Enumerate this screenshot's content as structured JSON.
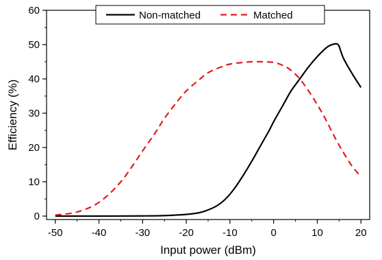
{
  "chart_data": {
    "type": "line",
    "title": "",
    "xlabel": "Input power (dBm)",
    "ylabel": "Efficiency (%)",
    "xlim": [
      -52,
      22
    ],
    "ylim": [
      -1,
      60
    ],
    "x_ticks": [
      -50,
      -40,
      -30,
      -20,
      -10,
      0,
      10,
      20
    ],
    "y_ticks": [
      0,
      10,
      20,
      30,
      40,
      50,
      60
    ],
    "grid": false,
    "legend_position": "top-center",
    "series": [
      {
        "name": "Non-matched",
        "color": "#000000",
        "dash": "solid",
        "x": [
          -50,
          -40,
          -30,
          -25,
          -20,
          -17,
          -15,
          -13,
          -11,
          -9,
          -7,
          -5,
          -3,
          -1,
          0,
          2,
          4,
          6,
          8,
          10,
          12,
          13,
          14,
          14.5,
          15,
          16,
          18,
          20
        ],
        "y": [
          0,
          0,
          0.05,
          0.15,
          0.5,
          1,
          1.8,
          3,
          5,
          8,
          11.8,
          16,
          20.5,
          25,
          27.5,
          32,
          36.5,
          40,
          43.5,
          46.5,
          49,
          49.8,
          50.2,
          50.2,
          49.5,
          46,
          41.5,
          37.5
        ]
      },
      {
        "name": "Matched",
        "color": "#e31a1c",
        "dash": "dashed",
        "x": [
          -50,
          -45,
          -40,
          -35,
          -30,
          -27,
          -25,
          -22,
          -20,
          -17,
          -15,
          -12,
          -10,
          -7,
          -5,
          -3,
          0,
          2,
          4,
          6,
          8,
          10,
          12,
          14,
          16,
          18,
          20
        ],
        "y": [
          0.3,
          1.2,
          4,
          10,
          19,
          24.5,
          28.5,
          33.5,
          36.5,
          39.8,
          41.8,
          43.5,
          44.3,
          44.8,
          45,
          45,
          44.8,
          44,
          42.5,
          40,
          36.5,
          32.5,
          28,
          23,
          18.5,
          14.5,
          11.5
        ]
      }
    ]
  }
}
